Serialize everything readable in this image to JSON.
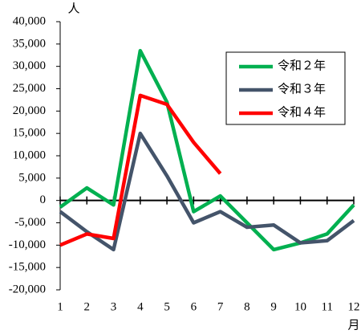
{
  "chart_data": {
    "type": "line",
    "y_unit": "人",
    "x_unit": "月",
    "categories": [
      "1",
      "2",
      "3",
      "4",
      "5",
      "6",
      "7",
      "8",
      "9",
      "10",
      "11",
      "12"
    ],
    "ylim": [
      -20000,
      40000
    ],
    "yticks": [
      {
        "value": -20000,
        "label": "-20,000"
      },
      {
        "value": -15000,
        "label": "-15,000"
      },
      {
        "value": -10000,
        "label": "-10,000"
      },
      {
        "value": -5000,
        "label": "-5,000"
      },
      0,
      {
        "value": 5000,
        "label": "5,000"
      },
      {
        "value": 10000,
        "label": "10,000"
      },
      {
        "value": 15000,
        "label": "15,000"
      },
      {
        "value": 20000,
        "label": "20,000"
      },
      {
        "value": 25000,
        "label": "25,000"
      },
      {
        "value": 30000,
        "label": "30,000"
      },
      {
        "value": 35000,
        "label": "35,000"
      },
      {
        "value": 40000,
        "label": "40,000"
      }
    ],
    "series": [
      {
        "name": "令和２年",
        "color": "#00b050",
        "values": [
          -1500,
          2800,
          -1000,
          33500,
          22000,
          -2500,
          1000,
          -5000,
          -11000,
          -9500,
          -7500,
          -1000
        ]
      },
      {
        "name": "令和３年",
        "color": "#44546a",
        "values": [
          -2500,
          -7000,
          -11000,
          15000,
          5500,
          -5000,
          -2500,
          -6000,
          -5500,
          -9500,
          -9000,
          -4500
        ]
      },
      {
        "name": "令和４年",
        "color": "#ff0000",
        "values": [
          -10000,
          -7500,
          -8500,
          23500,
          21500,
          13000,
          6000,
          null,
          null,
          null,
          null,
          null
        ]
      }
    ]
  }
}
